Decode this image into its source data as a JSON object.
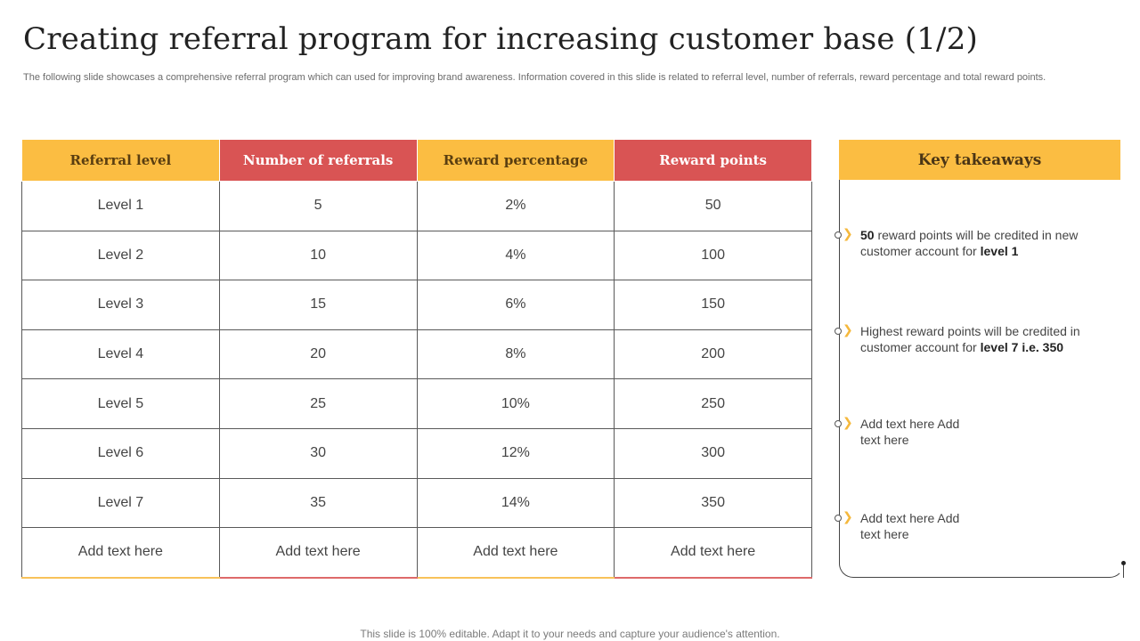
{
  "slide": {
    "title": "Creating referral program for increasing customer base (1/2)",
    "subtitle": "The following slide showcases a comprehensive referral program which can used for improving brand awareness. Information covered in this slide is related to referral level, number of referrals, reward percentage and total reward points.",
    "footer": "This slide is 100% editable. Adapt it to your needs and capture your audience's attention."
  },
  "table": {
    "headers": [
      "Referral level",
      "Number of referrals",
      "Reward percentage",
      "Reward points"
    ],
    "rows": [
      [
        "Level 1",
        "5",
        "2%",
        "50"
      ],
      [
        "Level 2",
        "10",
        "4%",
        "100"
      ],
      [
        "Level 3",
        "15",
        "6%",
        "150"
      ],
      [
        "Level 4",
        "20",
        "8%",
        "200"
      ],
      [
        "Level 5",
        "25",
        "10%",
        "250"
      ],
      [
        "Level 6",
        "30",
        "12%",
        "300"
      ],
      [
        "Level 7",
        "35",
        "14%",
        "350"
      ],
      [
        "Add text here",
        "Add text here",
        "Add text here",
        "Add text here"
      ]
    ]
  },
  "takeaways": {
    "title": "Key takeaways",
    "items": [
      {
        "b1": "50",
        "t1": " reward points will be credited in new customer account for ",
        "b2": "level 1"
      },
      {
        "b1": "",
        "t1": "Highest reward points will be credited in customer account for ",
        "b2": "level 7 i.e. 350"
      },
      {
        "b1": "",
        "t1": "Add text here Add text here",
        "b2": ""
      },
      {
        "b1": "",
        "t1": "Add text here Add text here",
        "b2": ""
      }
    ]
  },
  "colors": {
    "accent_yellow": "#fbbd42",
    "accent_red": "#d95454"
  }
}
